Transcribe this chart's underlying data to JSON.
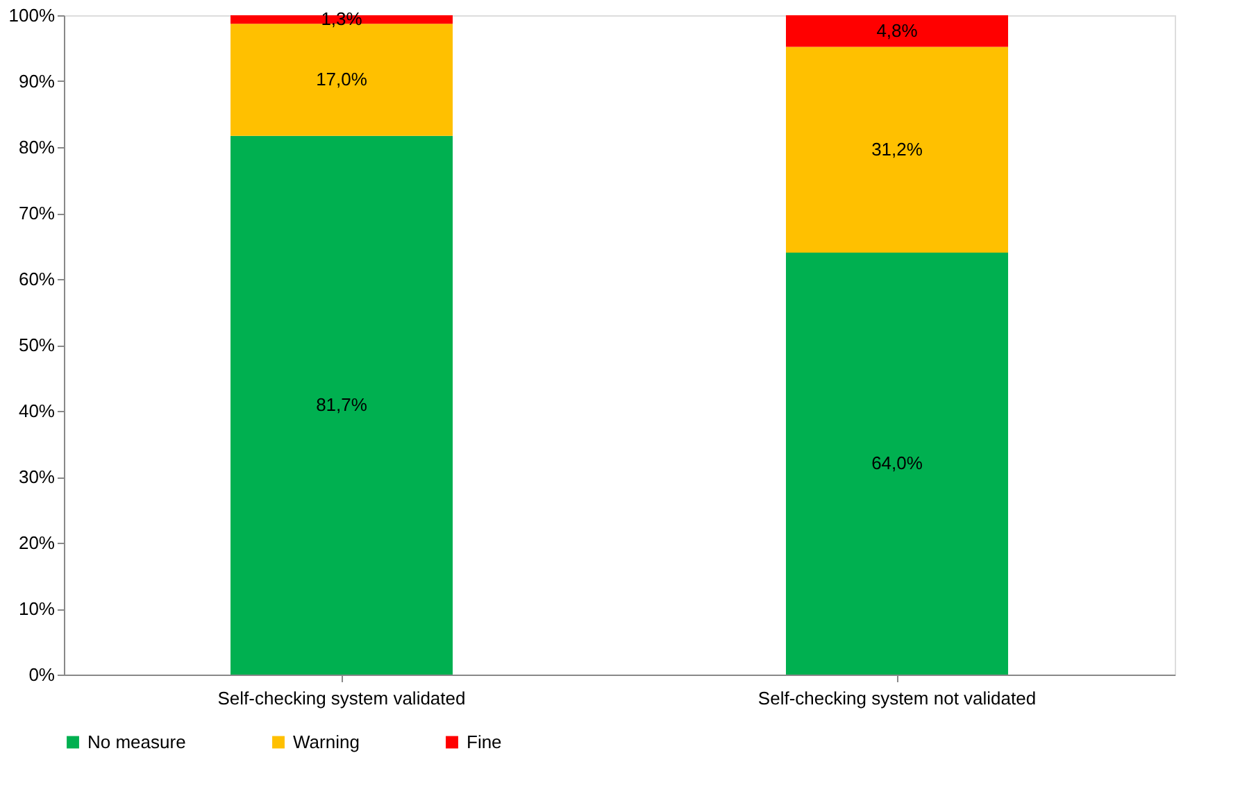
{
  "chart_data": {
    "type": "bar",
    "stacked": true,
    "categories": [
      "Self-checking system validated",
      "Self-checking system not validated"
    ],
    "series": [
      {
        "name": "No measure",
        "color": "#00b050",
        "values": [
          81.7,
          64.0
        ],
        "value_labels": [
          "81,7%",
          "64,0%"
        ]
      },
      {
        "name": "Warning",
        "color": "#ffc000",
        "values": [
          17.0,
          31.2
        ],
        "value_labels": [
          "17,0%",
          "31,2%"
        ]
      },
      {
        "name": "Fine",
        "color": "#ff0000",
        "values": [
          1.3,
          4.8
        ],
        "value_labels": [
          "1,3%",
          "4,8%"
        ]
      }
    ],
    "ylim": [
      0,
      100
    ],
    "yticks": [
      {
        "value": 0,
        "label": "0%"
      },
      {
        "value": 10,
        "label": "10%"
      },
      {
        "value": 20,
        "label": "20%"
      },
      {
        "value": 30,
        "label": "30%"
      },
      {
        "value": 40,
        "label": "40%"
      },
      {
        "value": 50,
        "label": "50%"
      },
      {
        "value": 60,
        "label": "60%"
      },
      {
        "value": 70,
        "label": "70%"
      },
      {
        "value": 80,
        "label": "80%"
      },
      {
        "value": 90,
        "label": "90%"
      },
      {
        "value": 100,
        "label": "100%"
      }
    ],
    "grid": false,
    "legend": "bottom"
  }
}
